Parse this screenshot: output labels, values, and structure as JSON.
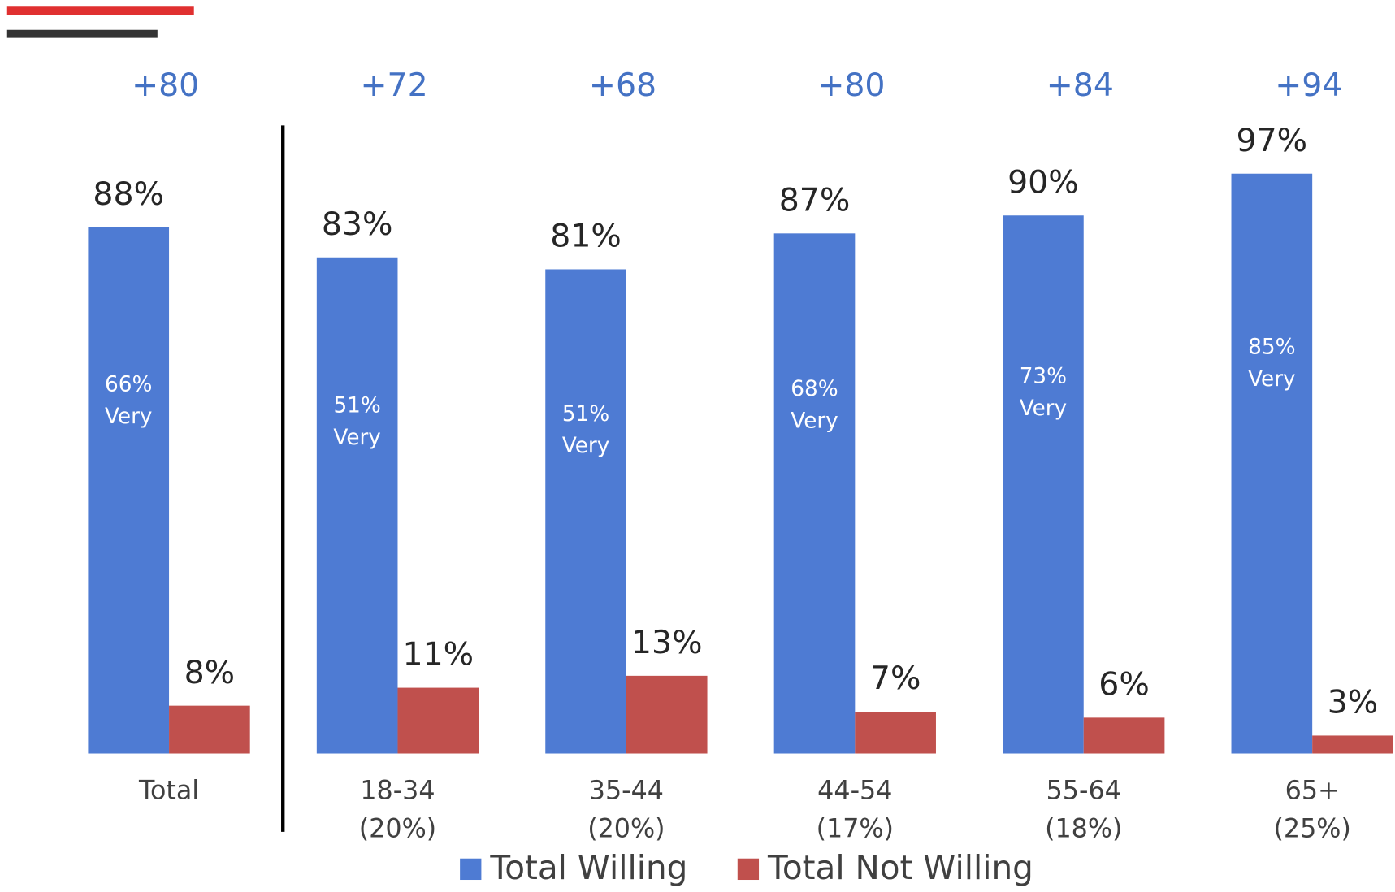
{
  "chart_data": {
    "type": "bar",
    "categories": [
      [
        "Total"
      ],
      [
        "18-34",
        "(20%)"
      ],
      [
        "35-44",
        "(20%)"
      ],
      [
        "44-54",
        "(17%)"
      ],
      [
        "55-64",
        "(18%)"
      ],
      [
        "65+",
        "(25%)"
      ]
    ],
    "series": [
      {
        "name": "Total Willing",
        "color": "#4e7bd3",
        "values": [
          88,
          83,
          81,
          87,
          90,
          97
        ],
        "value_labels": [
          "88%",
          "83%",
          "81%",
          "87%",
          "90%",
          "97%"
        ]
      },
      {
        "name": "Total Not Willing",
        "color": "#c0504d",
        "values": [
          8,
          11,
          13,
          7,
          6,
          3
        ],
        "value_labels": [
          "8%",
          "11%",
          "13%",
          "7%",
          "6%",
          "3%"
        ]
      }
    ],
    "very": {
      "label": "Very",
      "values": [
        66,
        51,
        51,
        68,
        73,
        85
      ],
      "value_labels": [
        "66%",
        "51%",
        "51%",
        "68%",
        "73%",
        "85%"
      ]
    },
    "net": {
      "values": [
        80,
        72,
        68,
        80,
        84,
        94
      ],
      "value_labels": [
        "+80",
        "+72",
        "+68",
        "+80",
        "+84",
        "+94"
      ]
    },
    "ylim": [
      0,
      100
    ]
  }
}
